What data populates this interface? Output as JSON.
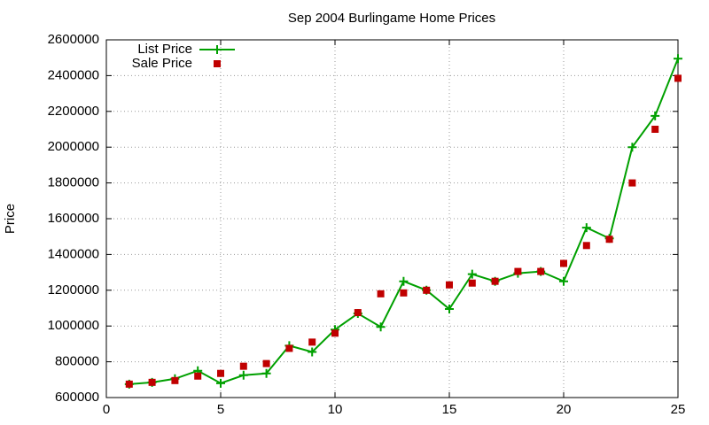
{
  "chart_data": {
    "type": "line",
    "title": "Sep 2004 Burlingame Home Prices",
    "y_label": "Price",
    "x": [
      1,
      2,
      3,
      4,
      5,
      6,
      7,
      8,
      9,
      10,
      11,
      12,
      13,
      14,
      15,
      16,
      17,
      18,
      19,
      20,
      21,
      22,
      23,
      24,
      25
    ],
    "series": [
      {
        "name": "List Price",
        "color": "#00a000",
        "mode": "linespoints",
        "values": [
          675000,
          685000,
          705000,
          750000,
          680000,
          725000,
          735000,
          890000,
          855000,
          980000,
          1070000,
          995000,
          1250000,
          1200000,
          1095000,
          1290000,
          1250000,
          1295000,
          1305000,
          1250000,
          1550000,
          1490000,
          2000000,
          2175000,
          2495000
        ]
      },
      {
        "name": "Sale Price",
        "color": "#c00000",
        "mode": "points",
        "values": [
          675000,
          685000,
          695000,
          720000,
          735000,
          775000,
          790000,
          875000,
          910000,
          960000,
          1075000,
          1180000,
          1185000,
          1200000,
          1230000,
          1240000,
          1250000,
          1305000,
          1305000,
          1350000,
          1450000,
          1485000,
          1800000,
          2100000,
          2385000
        ]
      }
    ],
    "xlim": [
      0,
      25
    ],
    "xticks": [
      0,
      5,
      10,
      15,
      20,
      25
    ],
    "ylim": [
      600000,
      2600000
    ],
    "yticks": [
      600000,
      800000,
      1000000,
      1200000,
      1400000,
      1600000,
      1800000,
      2000000,
      2200000,
      2400000,
      2600000
    ],
    "grid": true,
    "legend": "top-left"
  }
}
